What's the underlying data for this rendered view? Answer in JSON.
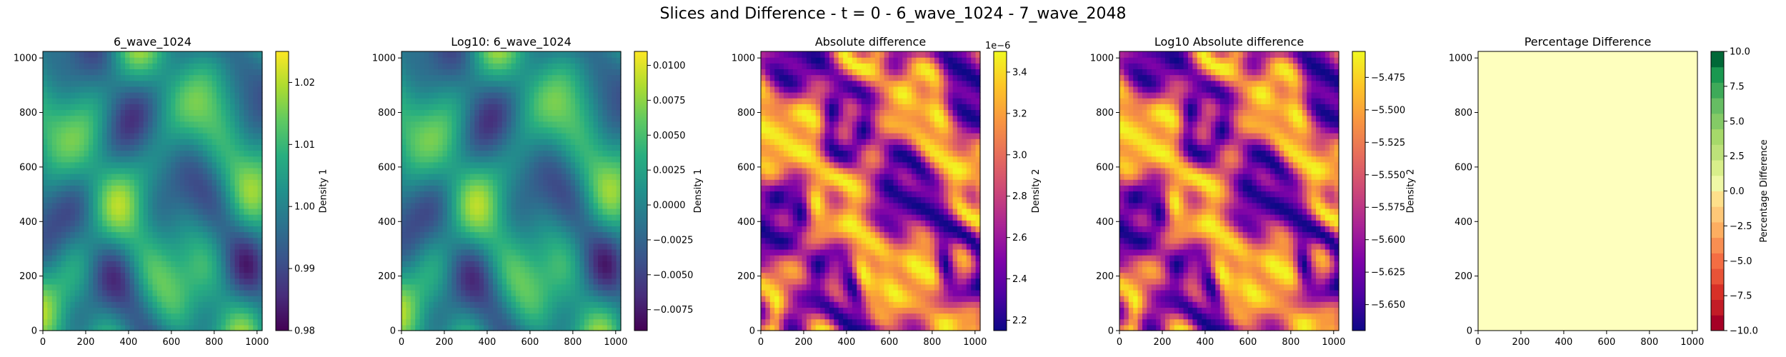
{
  "figure_title": "Slices and Difference - t = 0 - 6_wave_1024 - 7_wave_2048",
  "chart_data": [
    {
      "type": "heatmap",
      "title": "6_wave_1024",
      "colormap": "viridis",
      "xlim": [
        0,
        1024
      ],
      "ylim": [
        0,
        1024
      ],
      "x_ticks": [
        0,
        200,
        400,
        600,
        800,
        1000
      ],
      "y_ticks": [
        0,
        200,
        400,
        600,
        800,
        1000
      ],
      "colorbar": {
        "label": "Density 1",
        "range": [
          0.98,
          1.025
        ],
        "ticks": [
          "0.98",
          "0.99",
          "1.00",
          "1.01",
          "1.02"
        ],
        "offset": ""
      }
    },
    {
      "type": "heatmap",
      "title": "Log10: 6_wave_1024",
      "colormap": "viridis",
      "xlim": [
        0,
        1024
      ],
      "ylim": [
        0,
        1024
      ],
      "x_ticks": [
        0,
        200,
        400,
        600,
        800,
        1000
      ],
      "y_ticks": [
        0,
        200,
        400,
        600,
        800,
        1000
      ],
      "colorbar": {
        "label": "Density 1",
        "range": [
          -0.009,
          0.011
        ],
        "ticks": [
          "−0.0075",
          "−0.0050",
          "−0.0025",
          "0.0000",
          "0.0025",
          "0.0050",
          "0.0075",
          "0.0100"
        ],
        "offset": ""
      }
    },
    {
      "type": "heatmap",
      "title": "Absolute difference",
      "colormap": "plasma",
      "xlim": [
        0,
        1024
      ],
      "ylim": [
        0,
        1024
      ],
      "x_ticks": [
        0,
        200,
        400,
        600,
        800,
        1000
      ],
      "y_ticks": [
        0,
        200,
        400,
        600,
        800,
        1000
      ],
      "colorbar": {
        "label": "Density 2",
        "range": [
          2.15,
          3.5
        ],
        "ticks": [
          "2.2",
          "2.4",
          "2.6",
          "2.8",
          "3.0",
          "3.2",
          "3.4"
        ],
        "offset": "1e−6"
      }
    },
    {
      "type": "heatmap",
      "title": "Log10 Absolute difference",
      "colormap": "plasma",
      "xlim": [
        0,
        1024
      ],
      "ylim": [
        0,
        1024
      ],
      "x_ticks": [
        0,
        200,
        400,
        600,
        800,
        1000
      ],
      "y_ticks": [
        0,
        200,
        400,
        600,
        800,
        1000
      ],
      "colorbar": {
        "label": "Density 2",
        "range": [
          -5.67,
          -5.455
        ],
        "ticks": [
          "−5.650",
          "−5.625",
          "−5.600",
          "−5.575",
          "−5.550",
          "−5.525",
          "−5.500",
          "−5.475"
        ],
        "offset": ""
      }
    },
    {
      "type": "heatmap",
      "title": "Percentage Difference",
      "colormap": "RdYlGn",
      "uniform_value": 0,
      "xlim": [
        0,
        1024
      ],
      "ylim": [
        0,
        1024
      ],
      "x_ticks": [
        0,
        200,
        400,
        600,
        800,
        1000
      ],
      "y_ticks": [
        0,
        200,
        400,
        600,
        800,
        1000
      ],
      "colorbar": {
        "label": "Percentage Difference",
        "range": [
          -10,
          10
        ],
        "ticks": [
          "−10.0",
          "−7.5",
          "−5.0",
          "−2.5",
          "0.0",
          "2.5",
          "5.0",
          "7.5",
          "10.0"
        ],
        "offset": ""
      }
    }
  ]
}
